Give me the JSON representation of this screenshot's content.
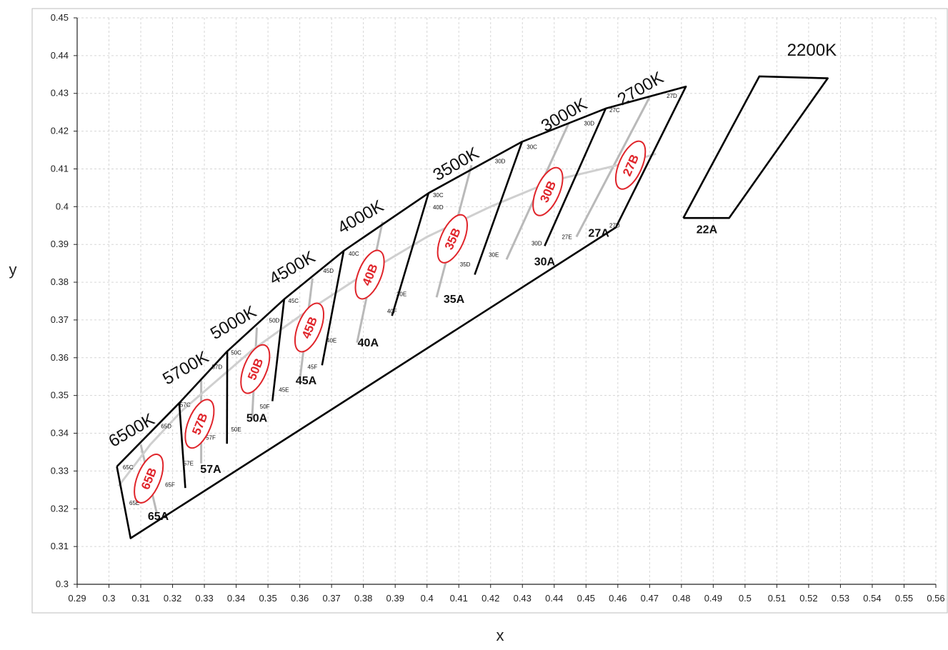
{
  "chart_data": {
    "type": "scatter",
    "xlabel": "x",
    "ylabel": "y",
    "xlim": [
      0.29,
      0.56
    ],
    "ylim": [
      0.3,
      0.45
    ],
    "x_ticks": [
      "0.29",
      "0.3",
      "0.31",
      "0.32",
      "0.33",
      "0.34",
      "0.35",
      "0.36",
      "0.37",
      "0.38",
      "0.39",
      "0.4",
      "0.41",
      "0.42",
      "0.43",
      "0.44",
      "0.45",
      "0.46",
      "0.47",
      "0.48",
      "0.49",
      "0.5",
      "0.51",
      "0.52",
      "0.53",
      "0.54",
      "0.55",
      "0.56"
    ],
    "y_ticks": [
      "0.3",
      "0.31",
      "0.32",
      "0.33",
      "0.34",
      "0.35",
      "0.36",
      "0.37",
      "0.38",
      "0.39",
      "0.4",
      "0.41",
      "0.42",
      "0.43",
      "0.44",
      "0.45"
    ],
    "grid": true,
    "region_outlines": [
      [
        [
          0.3025,
          0.3312
        ],
        [
          0.3068,
          0.3122
        ],
        [
          0.4594,
          0.3945
        ],
        [
          0.4814,
          0.4318
        ],
        [
          0.4562,
          0.426
        ],
        [
          0.4299,
          0.4172
        ],
        [
          0.4005,
          0.4036
        ],
        [
          0.3738,
          0.3883
        ],
        [
          0.3551,
          0.3755
        ],
        [
          0.3372,
          0.3617
        ],
        [
          0.3221,
          0.348
        ],
        [
          0.3025,
          0.3312
        ]
      ],
      [
        [
          0.4806,
          0.397
        ],
        [
          0.495,
          0.397
        ],
        [
          0.526,
          0.434
        ],
        [
          0.5045,
          0.4345
        ],
        [
          0.4806,
          0.397
        ]
      ]
    ],
    "dividers": [
      [
        [
          0.3221,
          0.348
        ],
        [
          0.324,
          0.3255
        ]
      ],
      [
        [
          0.3372,
          0.3617
        ],
        [
          0.3371,
          0.3372
        ]
      ],
      [
        [
          0.3551,
          0.3755
        ],
        [
          0.3514,
          0.3485
        ]
      ],
      [
        [
          0.3738,
          0.3883
        ],
        [
          0.367,
          0.358
        ]
      ],
      [
        [
          0.4005,
          0.4036
        ],
        [
          0.389,
          0.3711
        ]
      ],
      [
        [
          0.4299,
          0.4172
        ],
        [
          0.415,
          0.382
        ]
      ],
      [
        [
          0.4562,
          0.426
        ],
        [
          0.437,
          0.3896
        ]
      ]
    ],
    "sub_lines": [
      [
        [
          0.31,
          0.337
        ],
        [
          0.315,
          0.319
        ]
      ],
      [
        [
          0.329,
          0.354
        ],
        [
          0.329,
          0.332
        ]
      ],
      [
        [
          0.3465,
          0.368
        ],
        [
          0.345,
          0.344
        ]
      ],
      [
        [
          0.364,
          0.381
        ],
        [
          0.36,
          0.354
        ]
      ],
      [
        [
          0.386,
          0.396
        ],
        [
          0.378,
          0.364
        ]
      ],
      [
        [
          0.414,
          0.411
        ],
        [
          0.403,
          0.376
        ]
      ],
      [
        [
          0.4445,
          0.422
        ],
        [
          0.425,
          0.386
        ]
      ],
      [
        [
          0.47,
          0.429
        ],
        [
          0.447,
          0.392
        ]
      ]
    ],
    "locus": [
      [
        0.303,
        0.326
      ],
      [
        0.313,
        0.337
      ],
      [
        0.323,
        0.346
      ],
      [
        0.334,
        0.354
      ],
      [
        0.345,
        0.362
      ],
      [
        0.36,
        0.371
      ],
      [
        0.38,
        0.382
      ],
      [
        0.4,
        0.392
      ],
      [
        0.42,
        0.4
      ],
      [
        0.44,
        0.407
      ],
      [
        0.46,
        0.411
      ],
      [
        0.472,
        0.414
      ]
    ],
    "cct_labels": [
      {
        "text": "6500K",
        "x": 0.308,
        "y": 0.3395
      },
      {
        "text": "5700K",
        "x": 0.325,
        "y": 0.356
      },
      {
        "text": "5000K",
        "x": 0.34,
        "y": 0.368
      },
      {
        "text": "4500K",
        "x": 0.3585,
        "y": 0.3825
      },
      {
        "text": "4000K",
        "x": 0.38,
        "y": 0.396
      },
      {
        "text": "3500K",
        "x": 0.41,
        "y": 0.41
      },
      {
        "text": "3000K",
        "x": 0.444,
        "y": 0.423
      },
      {
        "text": "2700K",
        "x": 0.468,
        "y": 0.43
      },
      {
        "text": "2200K",
        "x": 0.521,
        "y": 0.44
      }
    ],
    "bins_a": [
      {
        "text": "65A",
        "x": 0.3155,
        "y": 0.317
      },
      {
        "text": "57A",
        "x": 0.332,
        "y": 0.3295
      },
      {
        "text": "50A",
        "x": 0.3465,
        "y": 0.343
      },
      {
        "text": "45A",
        "x": 0.362,
        "y": 0.353
      },
      {
        "text": "40A",
        "x": 0.3815,
        "y": 0.363
      },
      {
        "text": "35A",
        "x": 0.4085,
        "y": 0.3745
      },
      {
        "text": "30A",
        "x": 0.437,
        "y": 0.3845
      },
      {
        "text": "27A",
        "x": 0.454,
        "y": 0.392
      },
      {
        "text": "22A",
        "x": 0.488,
        "y": 0.393
      }
    ],
    "bins_b": [
      {
        "text": "65B",
        "x": 0.3125,
        "y": 0.328,
        "angle": -68
      },
      {
        "text": "57B",
        "x": 0.3285,
        "y": 0.3425,
        "angle": -68
      },
      {
        "text": "50B",
        "x": 0.346,
        "y": 0.357,
        "angle": -68
      },
      {
        "text": "45B",
        "x": 0.363,
        "y": 0.368,
        "angle": -68
      },
      {
        "text": "40B",
        "x": 0.382,
        "y": 0.382,
        "angle": -68
      },
      {
        "text": "35B",
        "x": 0.408,
        "y": 0.3915,
        "angle": -66
      },
      {
        "text": "30B",
        "x": 0.438,
        "y": 0.404,
        "angle": -66
      },
      {
        "text": "27B",
        "x": 0.464,
        "y": 0.411,
        "angle": -66
      }
    ],
    "sub_labels": [
      {
        "text": "65C",
        "x": 0.306,
        "y": 0.3305
      },
      {
        "text": "65D",
        "x": 0.318,
        "y": 0.3413
      },
      {
        "text": "65E",
        "x": 0.308,
        "y": 0.321
      },
      {
        "text": "65F",
        "x": 0.3192,
        "y": 0.3258
      },
      {
        "text": "57C",
        "x": 0.324,
        "y": 0.347
      },
      {
        "text": "57D",
        "x": 0.334,
        "y": 0.357
      },
      {
        "text": "57E",
        "x": 0.325,
        "y": 0.3315
      },
      {
        "text": "57F",
        "x": 0.332,
        "y": 0.3383
      },
      {
        "text": "50C",
        "x": 0.34,
        "y": 0.3608
      },
      {
        "text": "50D",
        "x": 0.352,
        "y": 0.3693
      },
      {
        "text": "50E",
        "x": 0.34,
        "y": 0.3405
      },
      {
        "text": "50F",
        "x": 0.349,
        "y": 0.3465
      },
      {
        "text": "45C",
        "x": 0.358,
        "y": 0.3745
      },
      {
        "text": "45D",
        "x": 0.369,
        "y": 0.3825
      },
      {
        "text": "45E",
        "x": 0.355,
        "y": 0.351
      },
      {
        "text": "45F",
        "x": 0.364,
        "y": 0.357
      },
      {
        "text": "40C",
        "x": 0.377,
        "y": 0.387
      },
      {
        "text": "40D",
        "x": 0.4035,
        "y": 0.3993
      },
      {
        "text": "40E",
        "x": 0.37,
        "y": 0.364
      },
      {
        "text": "40F",
        "x": 0.389,
        "y": 0.3718
      },
      {
        "text": "30C",
        "x": 0.4035,
        "y": 0.4025
      },
      {
        "text": "30D",
        "x": 0.423,
        "y": 0.4115
      },
      {
        "text": "30E",
        "x": 0.392,
        "y": 0.3763
      },
      {
        "text": "35D",
        "x": 0.412,
        "y": 0.3842
      },
      {
        "text": "30C",
        "x": 0.433,
        "y": 0.4153
      },
      {
        "text": "30D",
        "x": 0.451,
        "y": 0.4215
      },
      {
        "text": "30E",
        "x": 0.421,
        "y": 0.3867
      },
      {
        "text": "30D",
        "x": 0.4345,
        "y": 0.3898
      },
      {
        "text": "27C",
        "x": 0.459,
        "y": 0.425
      },
      {
        "text": "27D",
        "x": 0.477,
        "y": 0.4288
      },
      {
        "text": "27E",
        "x": 0.444,
        "y": 0.3915
      },
      {
        "text": "27D",
        "x": 0.459,
        "y": 0.3945
      }
    ]
  }
}
